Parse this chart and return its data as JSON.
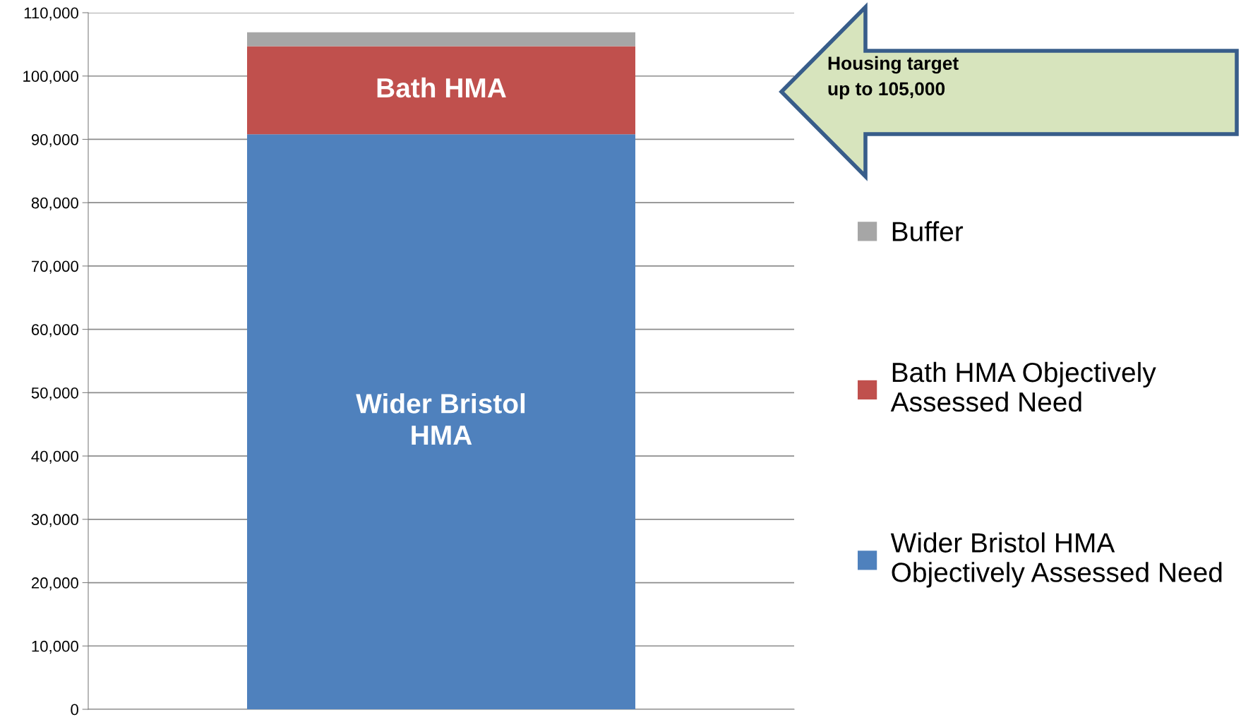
{
  "chart_data": {
    "type": "bar",
    "stacked": true,
    "categories": [
      null
    ],
    "series": [
      {
        "name": "Wider Bristol HMA\nObjectively Assessed Need",
        "color": "#4f81bd",
        "values": [
          90800
        ]
      },
      {
        "name": "Bath HMA Objectively\nAssessed Need",
        "color": "#c0504d",
        "values": [
          13900
        ]
      },
      {
        "name": "Buffer",
        "color": "#a6a6a6",
        "values": [
          2200
        ]
      }
    ],
    "ylim": [
      0,
      110000
    ],
    "yticks": [
      {
        "value": 0,
        "label": "0"
      },
      {
        "value": 10000,
        "label": "10,000"
      },
      {
        "value": 20000,
        "label": "20,000"
      },
      {
        "value": 30000,
        "label": "30,000"
      },
      {
        "value": 40000,
        "label": "40,000"
      },
      {
        "value": 50000,
        "label": "50,000"
      },
      {
        "value": 60000,
        "label": "60,000"
      },
      {
        "value": 70000,
        "label": "70,000"
      },
      {
        "value": 80000,
        "label": "80,000"
      },
      {
        "value": 90000,
        "label": "90,000"
      },
      {
        "value": 100000,
        "label": "100,000"
      },
      {
        "value": 110000,
        "label": "110,000"
      }
    ],
    "grid": "y",
    "legend": "right",
    "tick_labels": "y",
    "annotations": [
      "Wider Bristol\nHMA",
      "Bath HMA",
      "Housing target\nup to 105,000"
    ]
  }
}
